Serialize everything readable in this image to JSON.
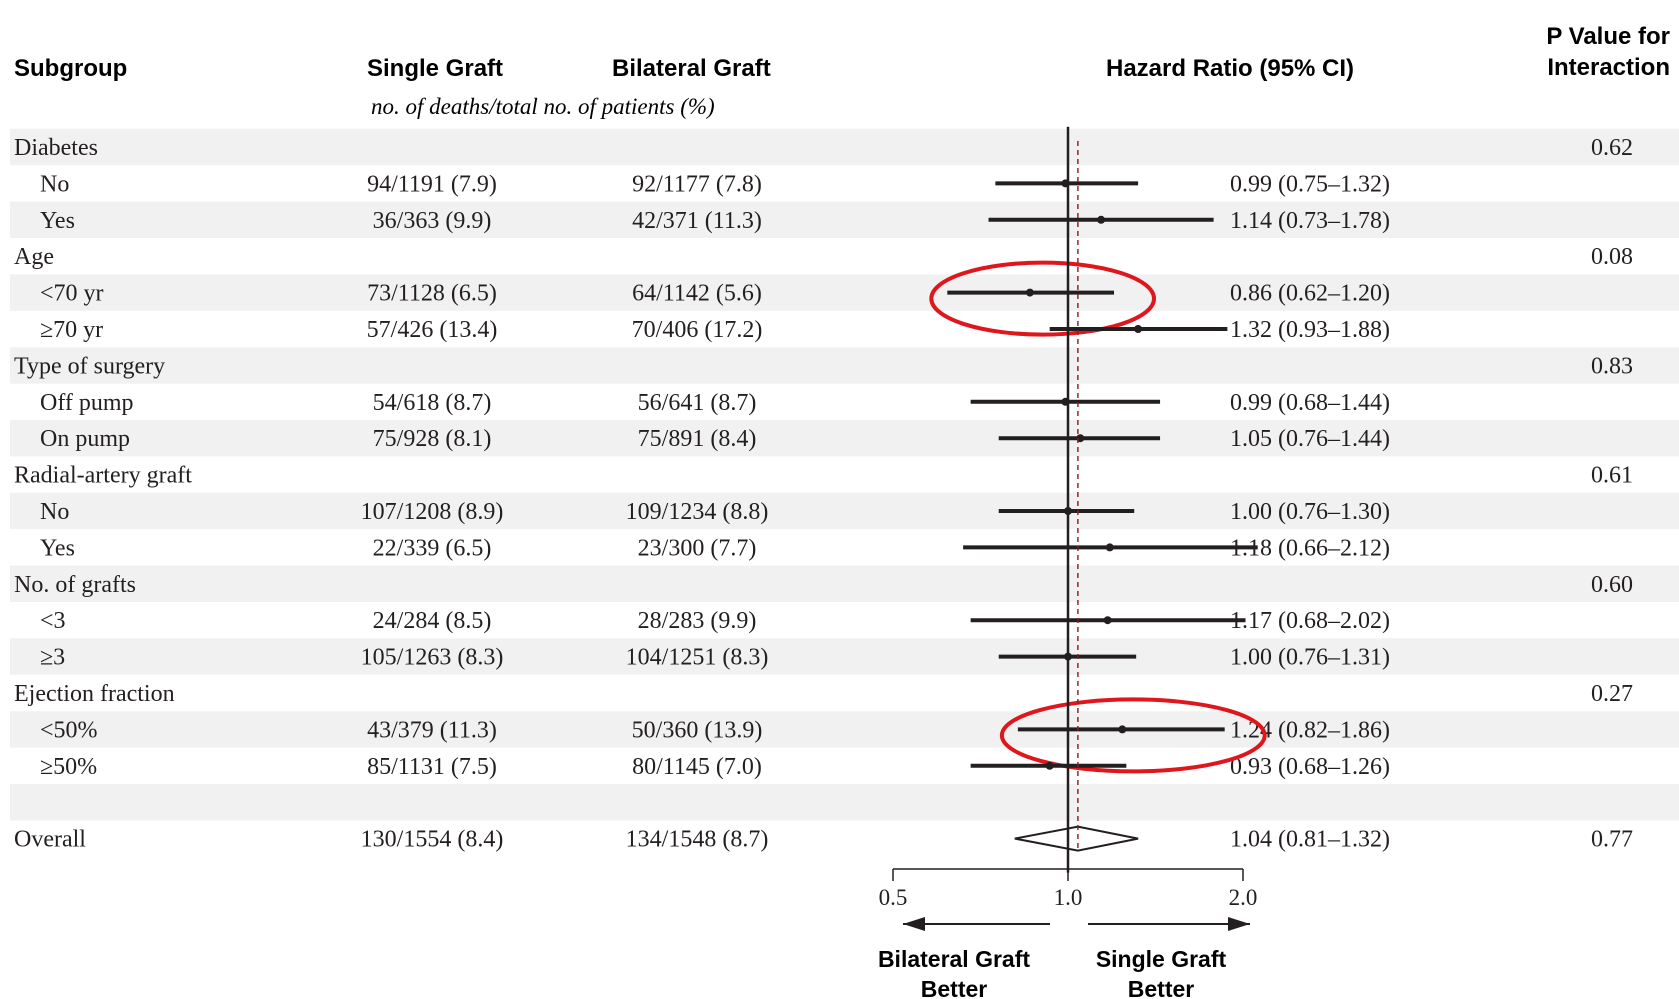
{
  "chart_data": {
    "type": "forest",
    "title": "",
    "headers": {
      "subgroup": "Subgroup",
      "single_graft": "Single Graft",
      "bilateral_graft": "Bilateral Graft",
      "counts_subheader": "no. of deaths/total no. of patients (%)",
      "hazard_ratio": "Hazard Ratio (95% CI)",
      "p_value_line1": "P Value for",
      "p_value_line2": "Interaction"
    },
    "axis": {
      "scale": "log",
      "xlim": [
        0.5,
        2.0
      ],
      "ticks": [
        0.5,
        1.0,
        2.0
      ],
      "tick_labels": [
        "0.5",
        "1.0",
        "2.0"
      ],
      "reference_line": 1.0,
      "overall_reference_line": 1.04,
      "left_label_line1": "Bilateral Graft",
      "left_label_line2": "Better",
      "right_label_line1": "Single Graft",
      "right_label_line2": "Better"
    },
    "rows": [
      {
        "kind": "group",
        "label": "Diabetes",
        "p": "0.62"
      },
      {
        "kind": "item",
        "label": "No",
        "single": "94/1191 (7.9)",
        "bilateral": "92/1177 (7.8)",
        "hr": 0.99,
        "lo": 0.75,
        "hi": 1.32,
        "text": "0.99 (0.75–1.32)"
      },
      {
        "kind": "item",
        "label": "Yes",
        "single": "36/363 (9.9)",
        "bilateral": "42/371 (11.3)",
        "hr": 1.14,
        "lo": 0.73,
        "hi": 1.78,
        "text": "1.14 (0.73–1.78)"
      },
      {
        "kind": "group",
        "label": "Age",
        "p": "0.08"
      },
      {
        "kind": "item",
        "label": "<70 yr",
        "single": "73/1128 (6.5)",
        "bilateral": "64/1142 (5.6)",
        "hr": 0.86,
        "lo": 0.62,
        "hi": 1.2,
        "text": "0.86 (0.62–1.20)",
        "highlight": true
      },
      {
        "kind": "item",
        "label": "≥70 yr",
        "single": "57/426 (13.4)",
        "bilateral": "70/406 (17.2)",
        "hr": 1.32,
        "lo": 0.93,
        "hi": 1.88,
        "text": "1.32 (0.93–1.88)"
      },
      {
        "kind": "group",
        "label": "Type of surgery",
        "p": "0.83"
      },
      {
        "kind": "item",
        "label": "Off pump",
        "single": "54/618 (8.7)",
        "bilateral": "56/641 (8.7)",
        "hr": 0.99,
        "lo": 0.68,
        "hi": 1.44,
        "text": "0.99 (0.68–1.44)"
      },
      {
        "kind": "item",
        "label": "On pump",
        "single": "75/928 (8.1)",
        "bilateral": "75/891 (8.4)",
        "hr": 1.05,
        "lo": 0.76,
        "hi": 1.44,
        "text": "1.05 (0.76–1.44)"
      },
      {
        "kind": "group",
        "label": "Radial-artery graft",
        "p": "0.61"
      },
      {
        "kind": "item",
        "label": "No",
        "single": "107/1208 (8.9)",
        "bilateral": "109/1234 (8.8)",
        "hr": 1.0,
        "lo": 0.76,
        "hi": 1.3,
        "text": "1.00 (0.76–1.30)"
      },
      {
        "kind": "item",
        "label": "Yes",
        "single": "22/339 (6.5)",
        "bilateral": "23/300 (7.7)",
        "hr": 1.18,
        "lo": 0.66,
        "hi": 2.12,
        "text": "1.18 (0.66–2.12)"
      },
      {
        "kind": "group",
        "label": "No. of grafts",
        "p": "0.60"
      },
      {
        "kind": "item",
        "label": "<3",
        "single": "24/284 (8.5)",
        "bilateral": "28/283 (9.9)",
        "hr": 1.17,
        "lo": 0.68,
        "hi": 2.02,
        "text": "1.17 (0.68–2.02)"
      },
      {
        "kind": "item",
        "label": "≥3",
        "single": "105/1263 (8.3)",
        "bilateral": "104/1251 (8.3)",
        "hr": 1.0,
        "lo": 0.76,
        "hi": 1.31,
        "text": "1.00 (0.76–1.31)"
      },
      {
        "kind": "group",
        "label": "Ejection fraction",
        "p": "0.27"
      },
      {
        "kind": "item",
        "label": "<50%",
        "single": "43/379 (11.3)",
        "bilateral": "50/360 (13.9)",
        "hr": 1.24,
        "lo": 0.82,
        "hi": 1.86,
        "text": "1.24 (0.82–1.86)",
        "highlight": true
      },
      {
        "kind": "item",
        "label": "≥50%",
        "single": "85/1131 (7.5)",
        "bilateral": "80/1145 (7.0)",
        "hr": 0.93,
        "lo": 0.68,
        "hi": 1.26,
        "text": "0.93 (0.68–1.26)"
      },
      {
        "kind": "blank"
      },
      {
        "kind": "overall",
        "label": "Overall",
        "single": "130/1554 (8.4)",
        "bilateral": "134/1548 (8.7)",
        "hr": 1.04,
        "lo": 0.81,
        "hi": 1.32,
        "text": "1.04 (0.81–1.32)",
        "p": "0.77"
      }
    ],
    "colors": {
      "text": "#231f20",
      "stripe": "#f1f1f2",
      "reference_dashed": "#8b1a1a",
      "highlight_ring": "#e0161d"
    }
  }
}
